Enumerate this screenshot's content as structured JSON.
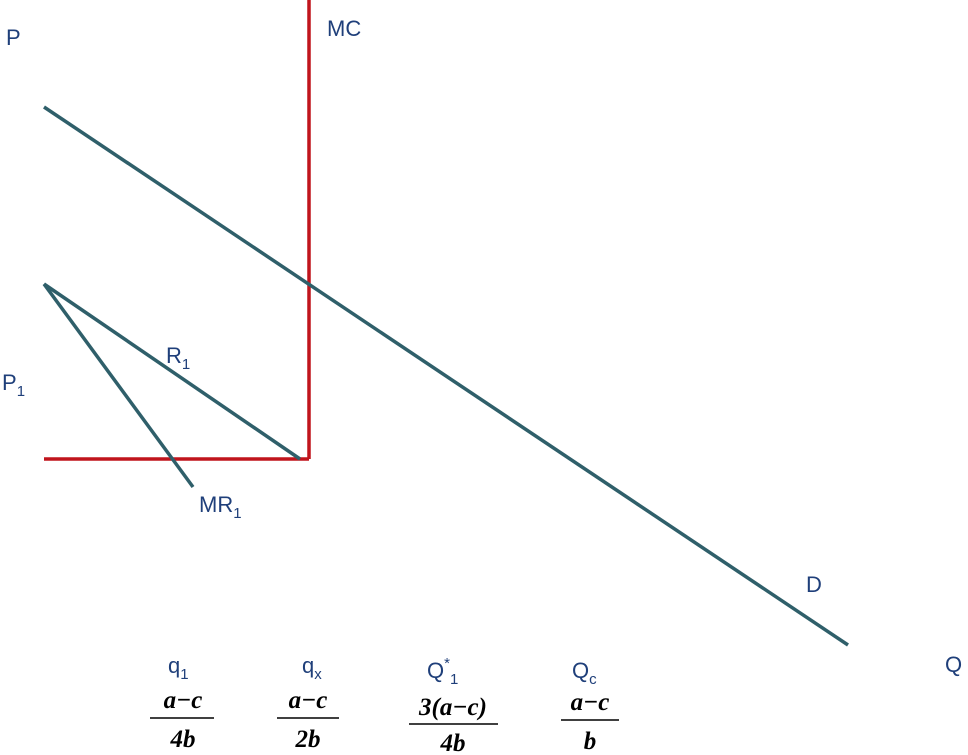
{
  "axes": {
    "y_label": "P",
    "x_label": "Q"
  },
  "curves": {
    "mc": "MC",
    "demand": "D",
    "residual_demand": "R",
    "residual_demand_sub": "1",
    "marginal_revenue": "MR",
    "marginal_revenue_sub": "1"
  },
  "price_marker": {
    "label": "P",
    "sub": "1"
  },
  "quantities": [
    {
      "label": "q",
      "sub": "1",
      "sup": "",
      "numerator": "a−c",
      "denominator": "4b"
    },
    {
      "label": "q",
      "sub": "x",
      "sup": "",
      "numerator": "a−c",
      "denominator": "2b"
    },
    {
      "label": "Q",
      "sub": "1",
      "sup": "*",
      "numerator": "3(a−c)",
      "denominator": "4b"
    },
    {
      "label": "Q",
      "sub": "c",
      "sup": "",
      "numerator": "a−c",
      "denominator": "b"
    }
  ],
  "colors": {
    "mc_line": "#c0141c",
    "demand_line": "#2f5f6a",
    "label_text": "#1f3f7a"
  }
}
